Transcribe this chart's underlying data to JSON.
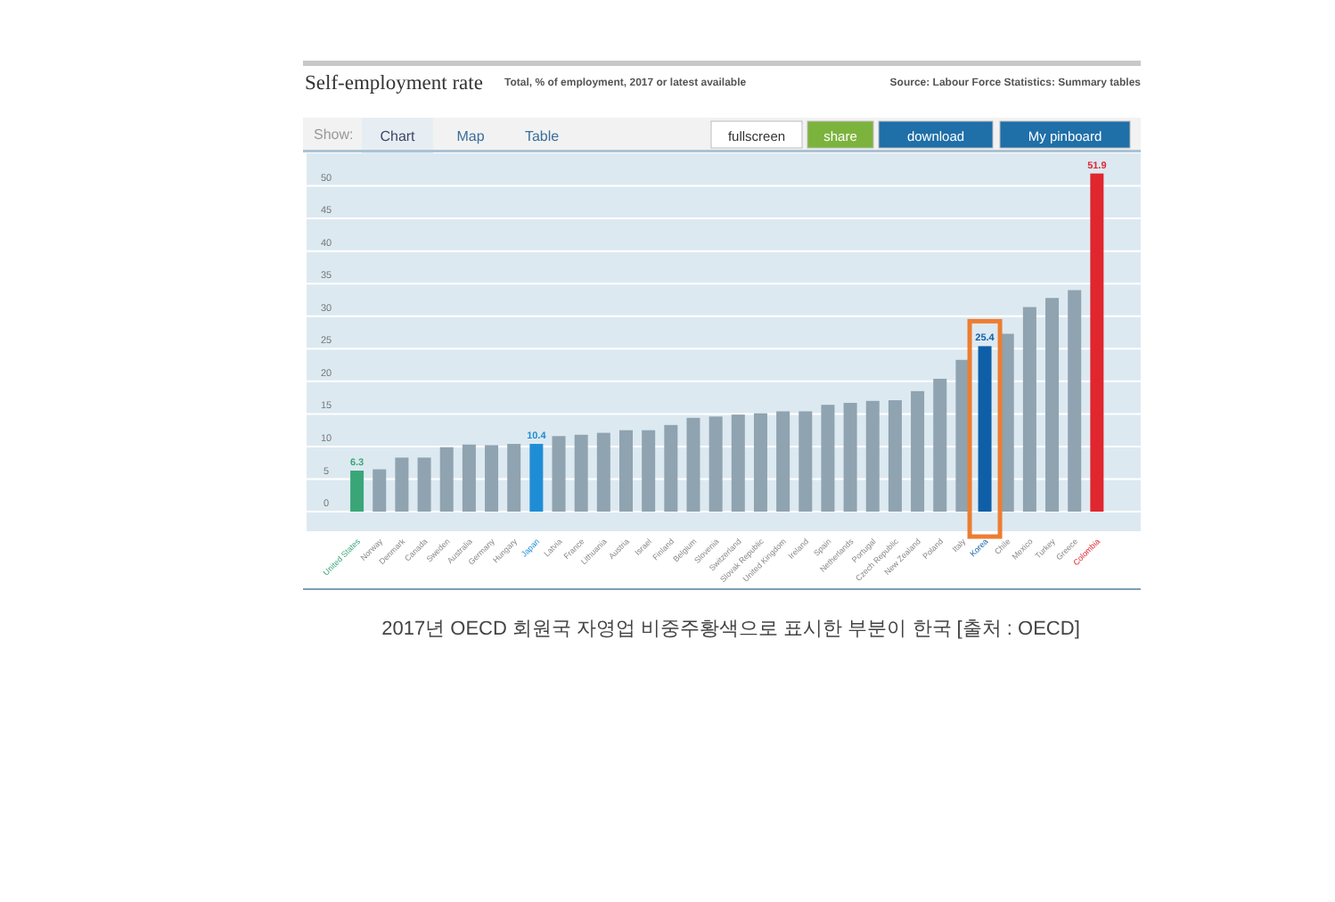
{
  "chart_data": {
    "type": "bar",
    "title": "Self-employment rate",
    "subtitle": "Total, % of employment, 2017 or latest available",
    "annotations": [
      "Source: Labour Force Statistics: Summary tables",
      "Show:",
      "Chart",
      "Map",
      "Table",
      "fullscreen",
      "share",
      "download",
      "My pinboard",
      "2017년 OECD 회원국 자영업 비중주황색으로 표시한 부분이 한국 [출처 : OECD]"
    ],
    "categories": [
      "United States",
      "Norway",
      "Denmark",
      "Canada",
      "Sweden",
      "Australia",
      "Germany",
      "Hungary",
      "Japan",
      "Latvia",
      "France",
      "Lithuania",
      "Austria",
      "Israel",
      "Finland",
      "Belgium",
      "Slovenia",
      "Switzerland",
      "Slovak Republic",
      "United Kingdom",
      "Ireland",
      "Spain",
      "Netherlands",
      "Portugal",
      "Czech Republic",
      "New Zealand",
      "Poland",
      "Italy",
      "Korea",
      "Chile",
      "Mexico",
      "Turkey",
      "Greece",
      "Colombia"
    ],
    "values": [
      6.3,
      6.5,
      8.3,
      8.3,
      9.9,
      10.3,
      10.2,
      10.4,
      10.4,
      11.6,
      11.8,
      12.1,
      12.5,
      12.5,
      13.3,
      14.4,
      14.6,
      14.9,
      15.1,
      15.4,
      15.4,
      16.4,
      16.7,
      17.0,
      17.1,
      18.5,
      20.4,
      23.3,
      25.4,
      27.3,
      31.4,
      32.8,
      34.0,
      51.9
    ],
    "value_labels": [
      "6.3",
      null,
      null,
      null,
      null,
      null,
      null,
      null,
      "10.4",
      null,
      null,
      null,
      null,
      null,
      null,
      null,
      null,
      null,
      null,
      null,
      null,
      null,
      null,
      null,
      null,
      null,
      null,
      null,
      "25.4",
      null,
      null,
      null,
      null,
      "51.9"
    ],
    "colors": [
      "#3aa678",
      "#8fa3b0",
      "#8fa3b0",
      "#8fa3b0",
      "#8fa3b0",
      "#8fa3b0",
      "#8fa3b0",
      "#8fa3b0",
      "#1f8dd6",
      "#8fa3b0",
      "#8fa3b0",
      "#8fa3b0",
      "#8fa3b0",
      "#8fa3b0",
      "#8fa3b0",
      "#8fa3b0",
      "#8fa3b0",
      "#8fa3b0",
      "#8fa3b0",
      "#8fa3b0",
      "#8fa3b0",
      "#8fa3b0",
      "#8fa3b0",
      "#8fa3b0",
      "#8fa3b0",
      "#8fa3b0",
      "#8fa3b0",
      "#8fa3b0",
      "#0e5fa8",
      "#8fa3b0",
      "#8fa3b0",
      "#8fa3b0",
      "#8fa3b0",
      "#e0262f"
    ],
    "ylim": [
      -3,
      55
    ],
    "yticks": [
      0,
      5,
      10,
      15,
      20,
      25,
      30,
      35,
      40,
      45,
      50
    ],
    "grid": "y"
  }
}
